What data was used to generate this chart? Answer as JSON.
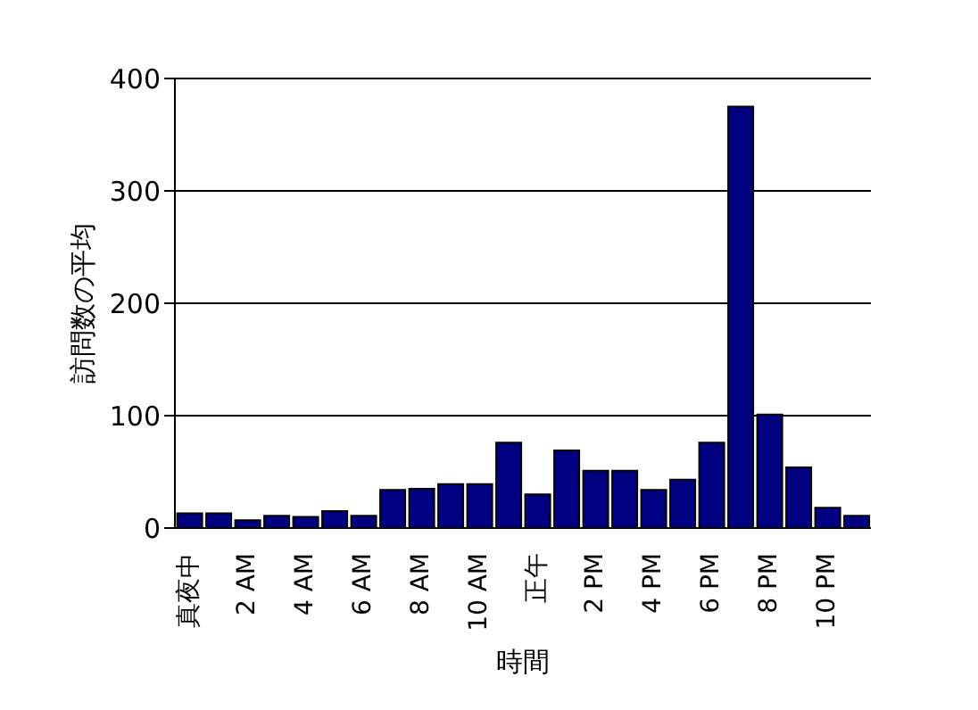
{
  "chart_data": {
    "type": "bar",
    "xlabel": "時間",
    "ylabel": "訪問数の平均",
    "categories": [
      "真夜中",
      null,
      "2 AM",
      null,
      "4 AM",
      null,
      "6 AM",
      null,
      "8 AM",
      null,
      "10 AM",
      null,
      "正午",
      null,
      "2 PM",
      null,
      "4 PM",
      null,
      "6 PM",
      null,
      "8 PM",
      null,
      "10 PM",
      null
    ],
    "values": [
      13,
      13,
      7,
      11,
      10,
      15,
      11,
      34,
      35,
      39,
      39,
      76,
      30,
      69,
      51,
      51,
      34,
      43,
      76,
      375,
      101,
      54,
      18,
      11
    ],
    "color": "#000080",
    "ylim": [
      0,
      400
    ],
    "yticks": [
      0,
      100,
      200,
      300,
      400
    ],
    "grid": "y"
  }
}
